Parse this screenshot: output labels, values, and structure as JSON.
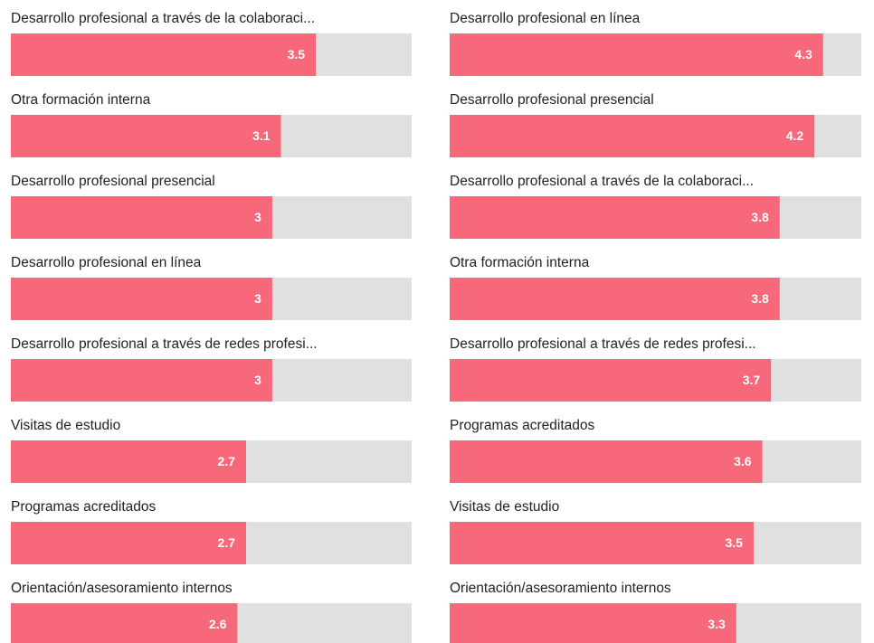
{
  "chart_data": [
    {
      "type": "bar",
      "orientation": "horizontal",
      "color": "#f7687a",
      "track_color": "#e0e0e0",
      "xlim": [
        0,
        4.6
      ],
      "categories": [
        "Desarrollo profesional a través de la colaboraci...",
        "Otra formación interna",
        "Desarrollo profesional presencial",
        "Desarrollo profesional en línea",
        "Desarrollo profesional a través de redes profesi...",
        "Visitas de estudio",
        "Programas acreditados",
        "Orientación/asesoramiento internos"
      ],
      "values": [
        3.5,
        3.1,
        3,
        3,
        3,
        2.7,
        2.7,
        2.6
      ]
    },
    {
      "type": "bar",
      "orientation": "horizontal",
      "color": "#f7687a",
      "track_color": "#e0e0e0",
      "xlim": [
        0,
        4.74
      ],
      "categories": [
        "Desarrollo profesional en línea",
        "Desarrollo profesional presencial",
        "Desarrollo profesional a través de la colaboraci...",
        "Otra formación interna",
        "Desarrollo profesional a través de redes profesi...",
        "Programas acreditados",
        "Visitas de estudio",
        "Orientación/asesoramiento internos"
      ],
      "values": [
        4.3,
        4.2,
        3.8,
        3.8,
        3.7,
        3.6,
        3.5,
        3.3
      ]
    }
  ]
}
